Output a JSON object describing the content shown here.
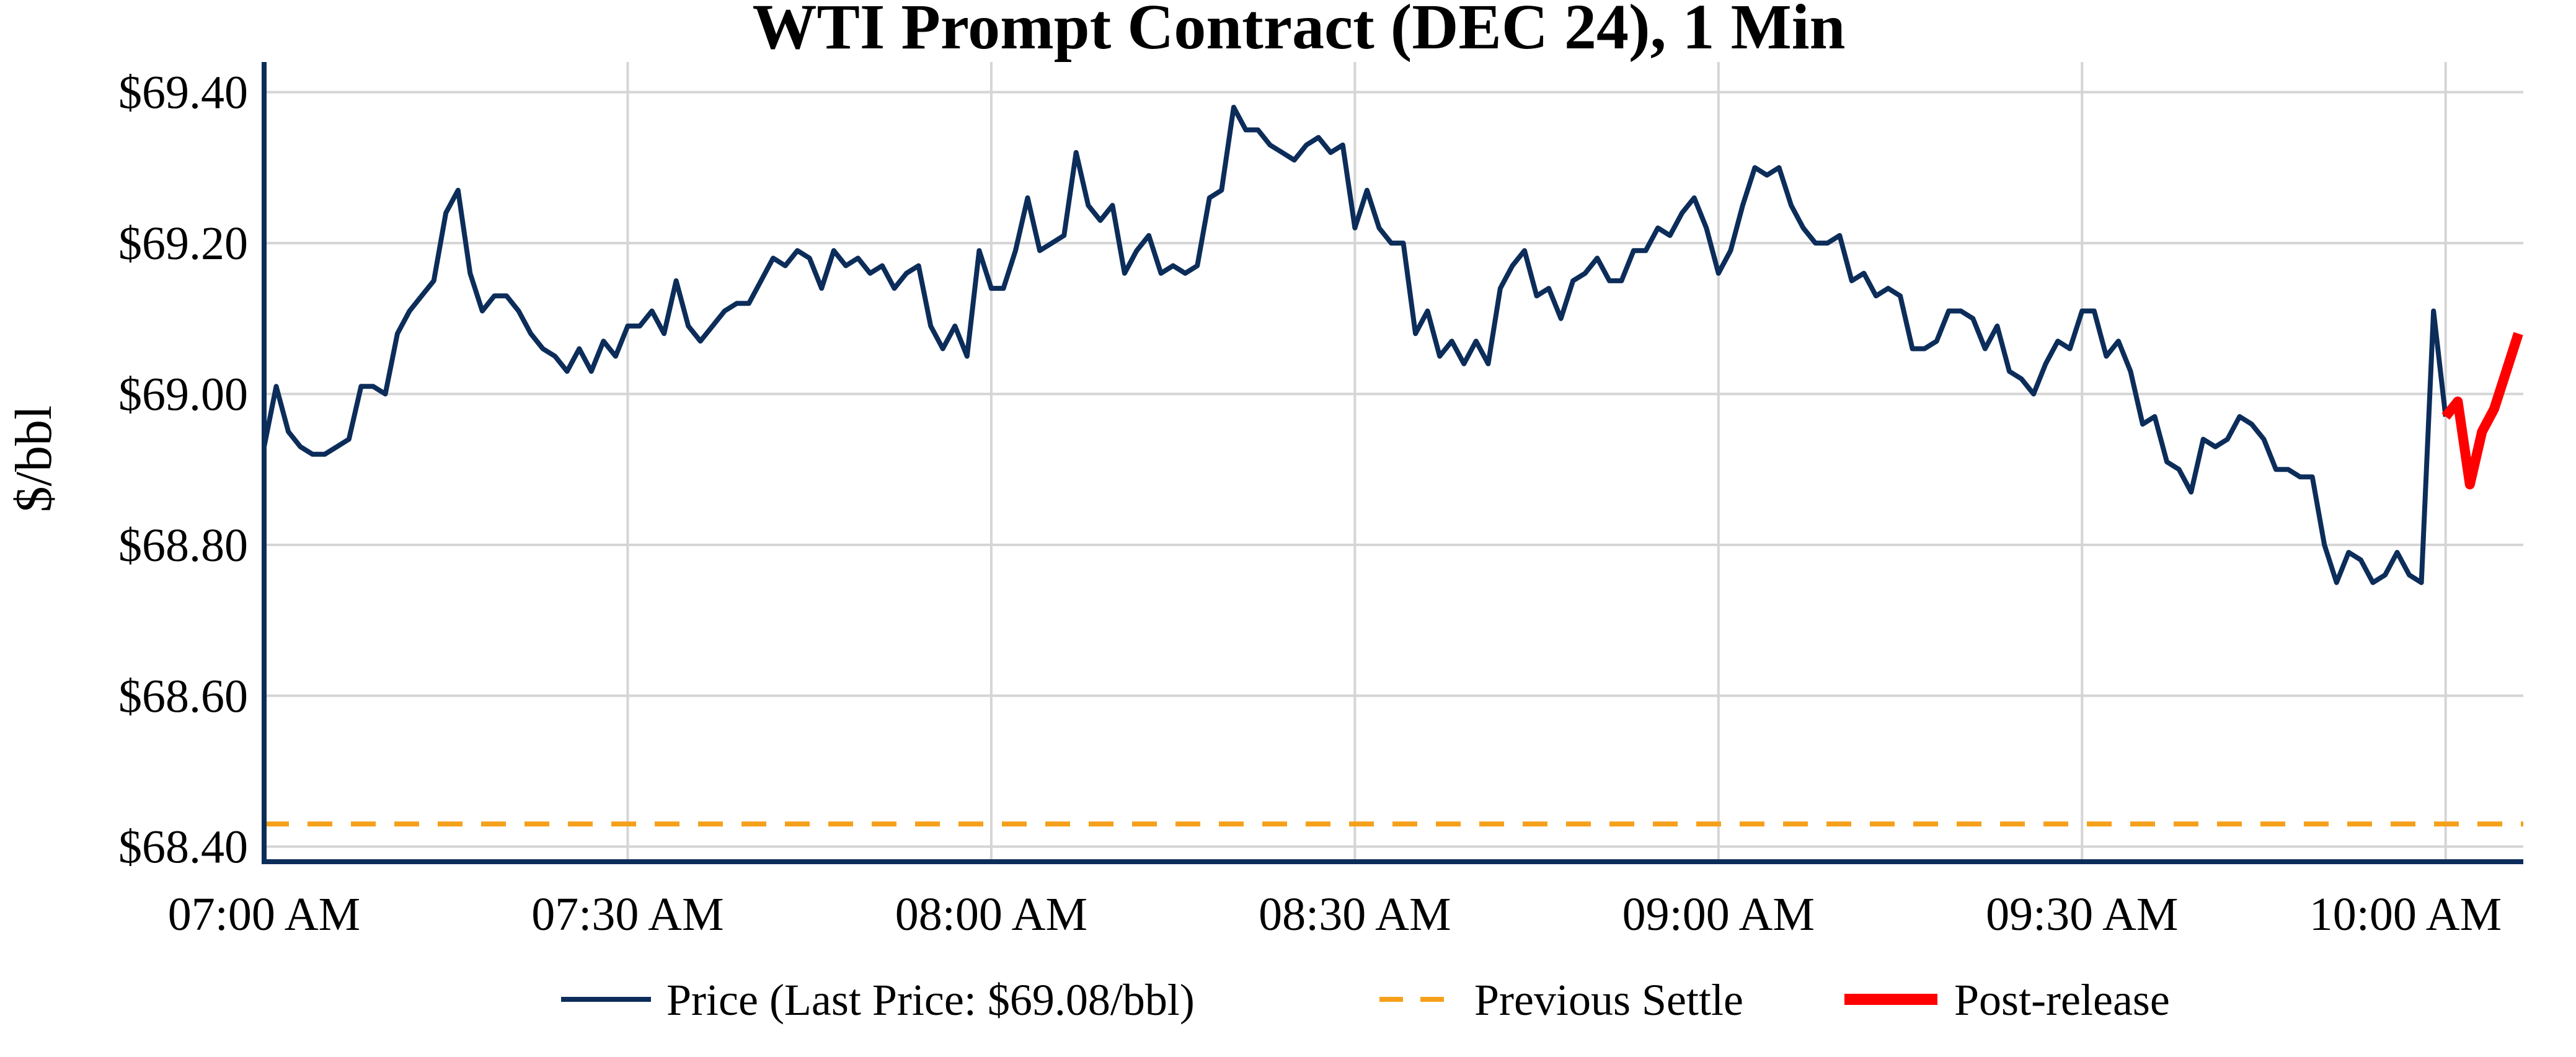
{
  "chart_data": {
    "type": "line",
    "title": "WTI Prompt Contract (DEC 24), 1 Min",
    "xlabel": "",
    "ylabel": "$/bbl",
    "x_unit": "minutes since 07:00 AM",
    "xlim": [
      0,
      186
    ],
    "ylim": [
      68.38,
      69.44
    ],
    "yticks": [
      68.4,
      68.6,
      68.8,
      69.0,
      69.2,
      69.4
    ],
    "ytick_labels": [
      "$68.40",
      "$68.60",
      "$68.80",
      "$69.00",
      "$69.20",
      "$69.40"
    ],
    "xticks": [
      0,
      30,
      60,
      90,
      120,
      150,
      180
    ],
    "xtick_labels": [
      "07:00 AM",
      "07:30 AM",
      "08:00 AM",
      "08:30 AM",
      "09:00 AM",
      "09:30 AM",
      "10:00 AM"
    ],
    "grid": true,
    "legend_position": "bottom-center",
    "colors": {
      "price": "#0c2d5a",
      "settle": "#f5a01a",
      "post": "#ff0000",
      "axis": "#0c2d5a",
      "grid": "#d5d5d5"
    },
    "series": [
      {
        "name": "Price (Last Price: $69.08/bbl)",
        "style": "line",
        "x": [
          0,
          1,
          2,
          3,
          4,
          5,
          6,
          7,
          8,
          9,
          10,
          11,
          12,
          13,
          14,
          15,
          16,
          17,
          18,
          19,
          20,
          21,
          22,
          23,
          24,
          25,
          26,
          27,
          28,
          29,
          30,
          31,
          32,
          33,
          34,
          35,
          36,
          37,
          38,
          39,
          40,
          41,
          42,
          43,
          44,
          45,
          46,
          47,
          48,
          49,
          50,
          51,
          52,
          53,
          54,
          55,
          56,
          57,
          58,
          59,
          60,
          61,
          62,
          63,
          64,
          65,
          66,
          67,
          68,
          69,
          70,
          71,
          72,
          73,
          74,
          75,
          76,
          77,
          78,
          79,
          80,
          81,
          82,
          83,
          84,
          85,
          86,
          87,
          88,
          89,
          90,
          91,
          92,
          93,
          94,
          95,
          96,
          97,
          98,
          99,
          100,
          101,
          102,
          103,
          104,
          105,
          106,
          107,
          108,
          109,
          110,
          111,
          112,
          113,
          114,
          115,
          116,
          117,
          118,
          119,
          120,
          121,
          122,
          123,
          124,
          125,
          126,
          127,
          128,
          129,
          130,
          131,
          132,
          133,
          134,
          135,
          136,
          137,
          138,
          139,
          140,
          141,
          142,
          143,
          144,
          145,
          146,
          147,
          148,
          149,
          150,
          151,
          152,
          153,
          154,
          155,
          156,
          157,
          158,
          159,
          160,
          161,
          162,
          163,
          164,
          165,
          166,
          167,
          168,
          169,
          170,
          171,
          172,
          173,
          174,
          175,
          176,
          177,
          178,
          179,
          180
        ],
        "y": [
          68.93,
          69.01,
          68.95,
          68.93,
          68.92,
          68.92,
          68.93,
          68.94,
          69.01,
          69.01,
          69.0,
          69.08,
          69.11,
          69.13,
          69.15,
          69.24,
          69.27,
          69.16,
          69.11,
          69.13,
          69.13,
          69.11,
          69.08,
          69.06,
          69.05,
          69.03,
          69.06,
          69.03,
          69.07,
          69.05,
          69.09,
          69.09,
          69.11,
          69.08,
          69.15,
          69.09,
          69.07,
          69.09,
          69.11,
          69.12,
          69.12,
          69.15,
          69.18,
          69.17,
          69.19,
          69.18,
          69.14,
          69.19,
          69.17,
          69.18,
          69.16,
          69.17,
          69.14,
          69.16,
          69.17,
          69.09,
          69.06,
          69.09,
          69.05,
          69.19,
          69.14,
          69.14,
          69.19,
          69.26,
          69.19,
          69.2,
          69.21,
          69.32,
          69.25,
          69.23,
          69.25,
          69.16,
          69.19,
          69.21,
          69.16,
          69.17,
          69.16,
          69.17,
          69.26,
          69.27,
          69.38,
          69.35,
          69.35,
          69.33,
          69.32,
          69.31,
          69.33,
          69.34,
          69.32,
          69.33,
          69.22,
          69.27,
          69.22,
          69.2,
          69.2,
          69.08,
          69.11,
          69.05,
          69.07,
          69.04,
          69.07,
          69.04,
          69.14,
          69.17,
          69.19,
          69.13,
          69.14,
          69.1,
          69.15,
          69.16,
          69.18,
          69.15,
          69.15,
          69.19,
          69.19,
          69.22,
          69.21,
          69.24,
          69.26,
          69.22,
          69.16,
          69.19,
          69.25,
          69.3,
          69.29,
          69.3,
          69.25,
          69.22,
          69.2,
          69.2,
          69.21,
          69.15,
          69.16,
          69.13,
          69.14,
          69.13,
          69.06,
          69.06,
          69.07,
          69.11,
          69.11,
          69.1,
          69.06,
          69.09,
          69.03,
          69.02,
          69.0,
          69.04,
          69.07,
          69.06,
          69.11,
          69.11,
          69.05,
          69.07,
          69.03,
          68.96,
          68.97,
          68.91,
          68.9,
          68.87,
          68.94,
          68.93,
          68.94,
          68.97,
          68.96,
          68.94,
          68.9,
          68.9,
          68.89,
          68.89,
          68.8,
          68.75,
          68.79,
          68.78,
          68.75,
          68.76,
          68.79,
          68.76,
          68.75,
          69.11,
          68.97
        ]
      },
      {
        "name": "Previous Settle",
        "style": "dashed",
        "value": 68.43
      },
      {
        "name": "Post-release",
        "style": "thick",
        "x": [
          180,
          181,
          182,
          183,
          184,
          185,
          186
        ],
        "y": [
          68.97,
          68.99,
          68.88,
          68.95,
          68.98,
          69.03,
          69.08
        ]
      }
    ]
  }
}
